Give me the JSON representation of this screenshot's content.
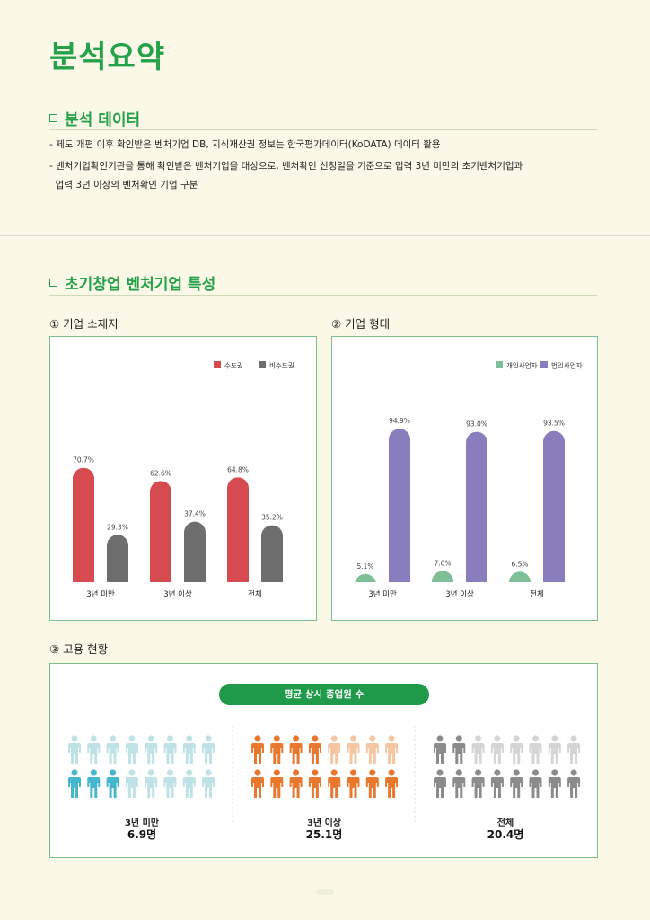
{
  "page_title": "분석요약",
  "section1": {
    "heading": "분석 데이터",
    "bullets": [
      "- 제도 개편 이후 확인받은 벤처기업 DB,  지식재산권 정보는 한국평가데이터(KoDATA) 데이터 활용",
      "- 벤처기업확인기관을 통해 확인받은 벤처기업을 대상으로, 벤처확인 신청일을 기준으로 업력 3년 미만의 초기벤처기업과",
      "  업력 3년 이상의 벤처확인 기업 구분"
    ]
  },
  "section2": {
    "heading": "초기창업 벤처기업 특성",
    "chart1_title": "① 기업 소재지",
    "chart2_title": "② 기업 형태",
    "chart3_title": "③ 고용 현황"
  },
  "colors": {
    "accent": "#23a24a",
    "red": "#d64b4f",
    "gray": "#6e6e6e",
    "green": "#7fbf97",
    "purple": "#8a7dbd",
    "teal": "#45b7cc",
    "teal_light": "#bfe2e6",
    "orange": "#e8782e",
    "orange_light": "#f4c6a1",
    "gray_dark": "#8b8b8b",
    "gray_light": "#d5d5d5"
  },
  "chart_data": [
    {
      "type": "bar",
      "categories": [
        "3년 미만",
        "3년 이상",
        "전체"
      ],
      "series": [
        {
          "name": "수도권",
          "values": [
            70.7,
            62.6,
            64.8
          ],
          "labels": [
            "70.7%",
            "62.6%",
            "64.8%"
          ]
        },
        {
          "name": "비수도권",
          "values": [
            29.3,
            37.4,
            35.2
          ],
          "labels": [
            "29.3%",
            "37.4%",
            "35.2%"
          ]
        }
      ],
      "ylim": [
        0,
        100
      ],
      "legend": "top-right"
    },
    {
      "type": "bar",
      "categories": [
        "3년 미만",
        "3년 이상",
        "전체"
      ],
      "series": [
        {
          "name": "개인사업자",
          "values": [
            5.1,
            7.0,
            6.5
          ],
          "labels": [
            "5.1%",
            "7.0%",
            "6.5%"
          ]
        },
        {
          "name": "법인사업자",
          "values": [
            94.9,
            93.0,
            93.5
          ],
          "labels": [
            "94.9%",
            "93.0%",
            "93.5%"
          ]
        }
      ],
      "ylim": [
        0,
        100
      ],
      "legend": "top-right"
    },
    {
      "type": "pictogram",
      "title": "평균 상시 종업원 수",
      "groups": [
        {
          "label": "3년 미만",
          "value": 6.9,
          "value_text": "6.9명"
        },
        {
          "label": "3년 이상",
          "value": 25.1,
          "value_text": "25.1명"
        },
        {
          "label": "전체",
          "value": 20.4,
          "value_text": "20.4명"
        }
      ]
    }
  ]
}
